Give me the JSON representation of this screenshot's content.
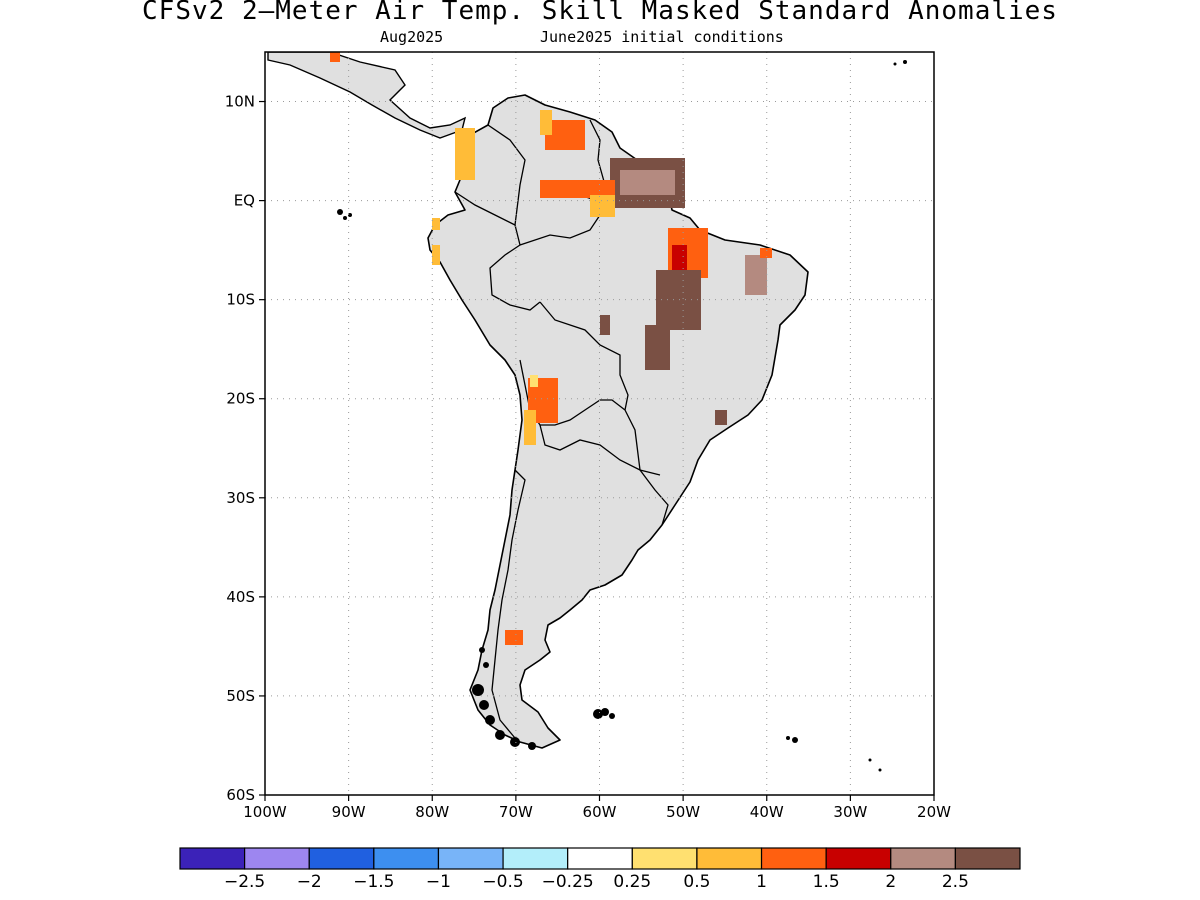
{
  "title": "CFSv2 2—Meter Air Temp. Skill Masked Standard Anomalies",
  "subtitle_left": "Aug2025",
  "subtitle_right": "June2025 initial conditions",
  "map": {
    "lon_range": [
      -100,
      -20
    ],
    "lat_range": [
      -60,
      15
    ],
    "lat_ticks": [
      {
        "lat": 10,
        "label": "10N"
      },
      {
        "lat": 0,
        "label": "EQ"
      },
      {
        "lat": -10,
        "label": "10S"
      },
      {
        "lat": -20,
        "label": "20S"
      },
      {
        "lat": -30,
        "label": "30S"
      },
      {
        "lat": -40,
        "label": "40S"
      },
      {
        "lat": -50,
        "label": "50S"
      },
      {
        "lat": -60,
        "label": "60S"
      }
    ],
    "lon_ticks": [
      {
        "lon": -100,
        "label": "100W"
      },
      {
        "lon": -90,
        "label": "90W"
      },
      {
        "lon": -80,
        "label": "80W"
      },
      {
        "lon": -70,
        "label": "70W"
      },
      {
        "lon": -60,
        "label": "60W"
      },
      {
        "lon": -50,
        "label": "50W"
      },
      {
        "lon": -40,
        "label": "40W"
      },
      {
        "lon": -30,
        "label": "30W"
      },
      {
        "lon": -20,
        "label": "20W"
      }
    ],
    "land_fill": "#e0e0e0",
    "coast_color": "#000000",
    "grid": "dotted"
  },
  "colorbar": {
    "colors": [
      "#3b22b8",
      "#9d86f0",
      "#2060e0",
      "#3d8ff0",
      "#78b4f8",
      "#b3eefa",
      "#ffffff",
      "#ffe070",
      "#ffbc38",
      "#ff6010",
      "#c80000",
      "#b48a80",
      "#7a5044"
    ],
    "labels": [
      "−2.5",
      "−2",
      "−1.5",
      "−1",
      "−0.5",
      "−0.25",
      "0.25",
      "0.5",
      "1",
      "1.5",
      "2",
      "2.5"
    ]
  }
}
